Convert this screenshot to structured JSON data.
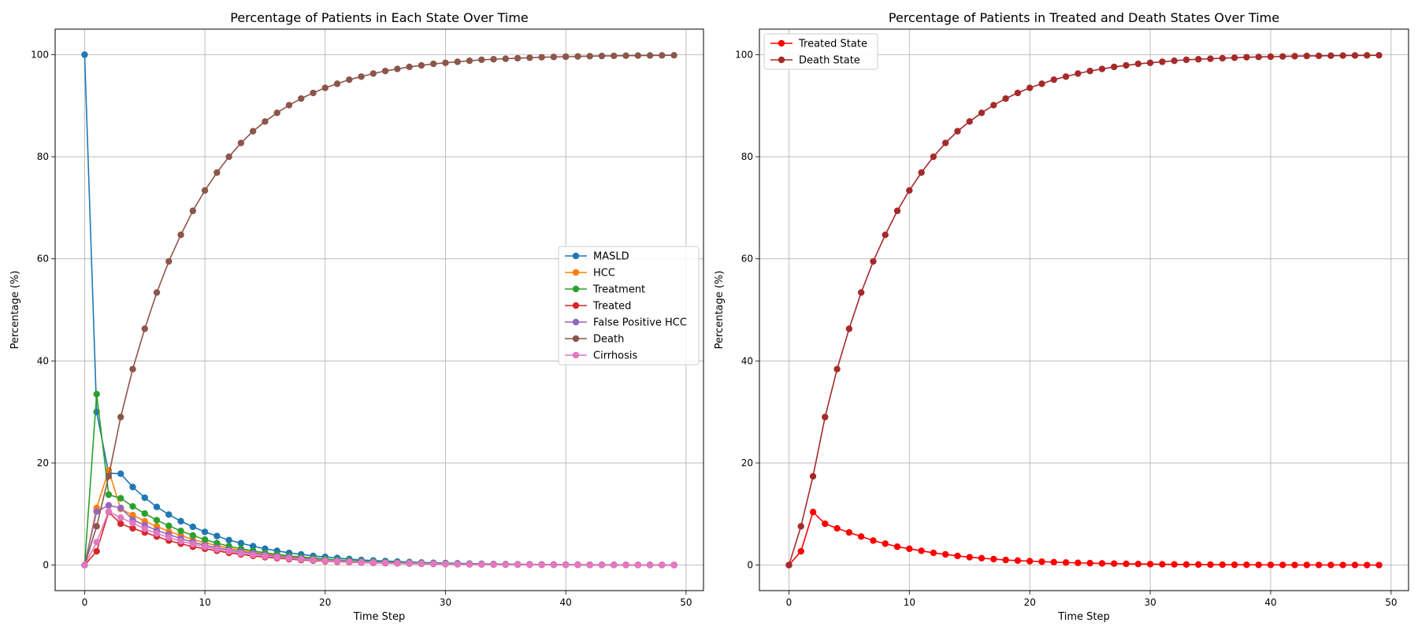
{
  "chart_data": [
    {
      "type": "line",
      "title": "Percentage of Patients in Each State Over Time",
      "xlabel": "Time Step",
      "ylabel": "Percentage (%)",
      "xlim": [
        -2.45,
        51.45
      ],
      "ylim": [
        -5,
        105
      ],
      "xticks": [
        0,
        10,
        20,
        30,
        40,
        50
      ],
      "yticks": [
        0,
        20,
        40,
        60,
        80,
        100
      ],
      "grid": true,
      "legend": "center-right",
      "markers": true,
      "x": [
        0,
        1,
        2,
        3,
        4,
        5,
        6,
        7,
        8,
        9,
        10,
        11,
        12,
        13,
        14,
        15,
        16,
        17,
        18,
        19,
        20,
        21,
        22,
        23,
        24,
        25,
        26,
        27,
        28,
        29,
        30,
        31,
        32,
        33,
        34,
        35,
        36,
        37,
        38,
        39,
        40,
        41,
        42,
        43,
        44,
        45,
        46,
        47,
        48,
        49
      ],
      "series": [
        {
          "name": "MASLD",
          "color": "#1f77b4",
          "values": [
            100,
            30,
            18,
            17.9,
            15.3,
            13.2,
            11.4,
            9.9,
            8.6,
            7.5,
            6.5,
            5.7,
            4.9,
            4.3,
            3.7,
            3.2,
            2.8,
            2.4,
            2.1,
            1.8,
            1.6,
            1.4,
            1.2,
            1.0,
            0.9,
            0.8,
            0.7,
            0.6,
            0.5,
            0.45,
            0.4,
            0.35,
            0.3,
            0.26,
            0.22,
            0.19,
            0.17,
            0.15,
            0.13,
            0.11,
            0.1,
            0.09,
            0.08,
            0.07,
            0.06,
            0.05,
            0.04,
            0.04,
            0.03,
            0.03
          ]
        },
        {
          "name": "HCC",
          "color": "#ff7f0e",
          "values": [
            0,
            11.2,
            18.6,
            11,
            9.8,
            8.6,
            7.6,
            6.6,
            5.8,
            5.0,
            4.4,
            3.8,
            3.3,
            2.9,
            2.5,
            2.2,
            1.9,
            1.7,
            1.45,
            1.27,
            1.1,
            0.96,
            0.83,
            0.72,
            0.63,
            0.55,
            0.48,
            0.42,
            0.36,
            0.32,
            0.28,
            0.24,
            0.21,
            0.18,
            0.16,
            0.14,
            0.12,
            0.1,
            0.09,
            0.08,
            0.07,
            0.06,
            0.05,
            0.05,
            0.04,
            0.03,
            0.03,
            0.03,
            0.02,
            0.02
          ]
        },
        {
          "name": "Treatment",
          "color": "#2ca02c",
          "values": [
            0,
            33.5,
            13.8,
            13.1,
            11.5,
            10.1,
            8.8,
            7.7,
            6.7,
            5.8,
            5.0,
            4.3,
            3.7,
            3.2,
            2.8,
            2.4,
            2.1,
            1.8,
            1.6,
            1.4,
            1.2,
            1.0,
            0.9,
            0.78,
            0.67,
            0.58,
            0.5,
            0.43,
            0.37,
            0.32,
            0.28,
            0.24,
            0.21,
            0.18,
            0.16,
            0.14,
            0.12,
            0.1,
            0.09,
            0.08,
            0.07,
            0.06,
            0.05,
            0.04,
            0.04,
            0.03,
            0.03,
            0.02,
            0.02,
            0.02
          ]
        },
        {
          "name": "Treated",
          "color": "#d62728",
          "values": [
            0,
            2.7,
            10.4,
            8.1,
            7.2,
            6.4,
            5.6,
            4.8,
            4.2,
            3.6,
            3.2,
            2.8,
            2.4,
            2.1,
            1.8,
            1.55,
            1.35,
            1.17,
            1.0,
            0.88,
            0.77,
            0.67,
            0.58,
            0.5,
            0.44,
            0.38,
            0.33,
            0.29,
            0.25,
            0.22,
            0.19,
            0.16,
            0.14,
            0.12,
            0.11,
            0.09,
            0.08,
            0.07,
            0.06,
            0.05,
            0.05,
            0.04,
            0.03,
            0.03,
            0.03,
            0.02,
            0.02,
            0.02,
            0.01,
            0.01
          ]
        },
        {
          "name": "False Positive HCC",
          "color": "#9467bd",
          "values": [
            0,
            10.5,
            11.7,
            11.2,
            8.9,
            7.8,
            6.8,
            6.0,
            5.2,
            4.5,
            3.9,
            3.4,
            3.0,
            2.6,
            2.3,
            2.0,
            1.7,
            1.5,
            1.3,
            1.1,
            0.95,
            0.83,
            0.72,
            0.63,
            0.55,
            0.48,
            0.41,
            0.36,
            0.31,
            0.27,
            0.24,
            0.2,
            0.18,
            0.15,
            0.13,
            0.12,
            0.1,
            0.09,
            0.08,
            0.07,
            0.06,
            0.05,
            0.04,
            0.04,
            0.03,
            0.03,
            0.02,
            0.02,
            0.02,
            0.02
          ]
        },
        {
          "name": "Death",
          "color": "#8c564b",
          "values": [
            0,
            7.6,
            17.4,
            29,
            38.4,
            46.3,
            53.4,
            59.5,
            64.7,
            69.4,
            73.4,
            76.9,
            80.0,
            82.7,
            85.0,
            86.9,
            88.6,
            90.1,
            91.4,
            92.5,
            93.5,
            94.3,
            95.1,
            95.7,
            96.3,
            96.8,
            97.2,
            97.6,
            97.9,
            98.2,
            98.4,
            98.6,
            98.8,
            99.0,
            99.1,
            99.2,
            99.3,
            99.4,
            99.5,
            99.55,
            99.6,
            99.65,
            99.7,
            99.74,
            99.77,
            99.8,
            99.82,
            99.84,
            99.86,
            99.88
          ]
        },
        {
          "name": "Cirrhosis",
          "color": "#e377c2",
          "values": [
            0,
            4.5,
            10.5,
            9.3,
            8.2,
            7.1,
            6.2,
            5.4,
            4.7,
            4.1,
            3.6,
            3.1,
            2.7,
            2.3,
            2.0,
            1.75,
            1.52,
            1.32,
            1.15,
            1.0,
            0.87,
            0.76,
            0.66,
            0.57,
            0.5,
            0.43,
            0.38,
            0.33,
            0.28,
            0.25,
            0.21,
            0.18,
            0.16,
            0.14,
            0.12,
            0.1,
            0.09,
            0.08,
            0.07,
            0.06,
            0.05,
            0.04,
            0.04,
            0.03,
            0.03,
            0.02,
            0.02,
            0.02,
            0.02,
            0.01
          ]
        }
      ]
    },
    {
      "type": "line",
      "title": "Percentage of Patients in Treated and Death States Over Time",
      "xlabel": "Time Step",
      "ylabel": "Percentage (%)",
      "xlim": [
        -2.45,
        51.45
      ],
      "ylim": [
        -5,
        105
      ],
      "xticks": [
        0,
        10,
        20,
        30,
        40,
        50
      ],
      "yticks": [
        0,
        20,
        40,
        60,
        80,
        100
      ],
      "grid": true,
      "legend": "top-left",
      "markers": true,
      "x": [
        0,
        1,
        2,
        3,
        4,
        5,
        6,
        7,
        8,
        9,
        10,
        11,
        12,
        13,
        14,
        15,
        16,
        17,
        18,
        19,
        20,
        21,
        22,
        23,
        24,
        25,
        26,
        27,
        28,
        29,
        30,
        31,
        32,
        33,
        34,
        35,
        36,
        37,
        38,
        39,
        40,
        41,
        42,
        43,
        44,
        45,
        46,
        47,
        48,
        49
      ],
      "series": [
        {
          "name": "Treated State",
          "color": "#ff0000",
          "values": [
            0,
            2.7,
            10.4,
            8.1,
            7.2,
            6.4,
            5.6,
            4.8,
            4.2,
            3.6,
            3.2,
            2.8,
            2.4,
            2.1,
            1.8,
            1.55,
            1.35,
            1.17,
            1.0,
            0.88,
            0.77,
            0.67,
            0.58,
            0.5,
            0.44,
            0.38,
            0.33,
            0.29,
            0.25,
            0.22,
            0.19,
            0.16,
            0.14,
            0.12,
            0.11,
            0.09,
            0.08,
            0.07,
            0.06,
            0.05,
            0.05,
            0.04,
            0.03,
            0.03,
            0.03,
            0.02,
            0.02,
            0.02,
            0.01,
            0.01
          ]
        },
        {
          "name": "Death State",
          "color": "#a52a2a",
          "values": [
            0,
            7.6,
            17.4,
            29,
            38.4,
            46.3,
            53.4,
            59.5,
            64.7,
            69.4,
            73.4,
            76.9,
            80.0,
            82.7,
            85.0,
            86.9,
            88.6,
            90.1,
            91.4,
            92.5,
            93.5,
            94.3,
            95.1,
            95.7,
            96.3,
            96.8,
            97.2,
            97.6,
            97.9,
            98.2,
            98.4,
            98.6,
            98.8,
            99.0,
            99.1,
            99.2,
            99.3,
            99.4,
            99.5,
            99.55,
            99.6,
            99.65,
            99.7,
            99.74,
            99.77,
            99.8,
            99.82,
            99.84,
            99.86,
            99.88
          ]
        }
      ]
    }
  ]
}
